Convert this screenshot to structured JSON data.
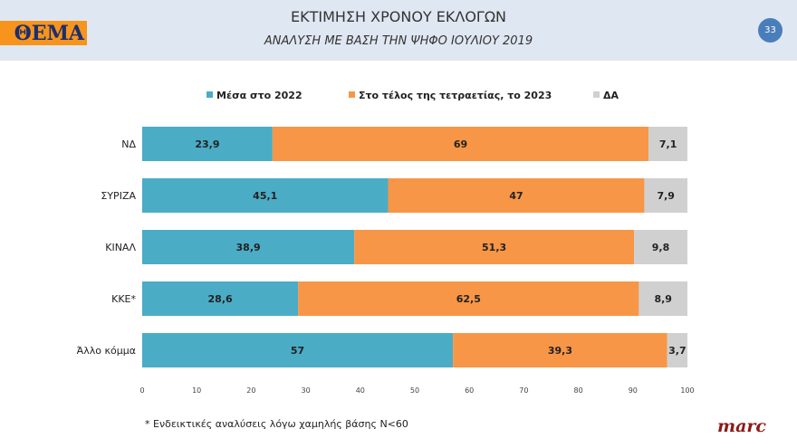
{
  "header": {
    "logo_text": "ΘΕΜΑ",
    "title": "ΕΚΤΙΜΗΣΗ ΧΡΟΝΟΥ ΕΚΛΟΓΩΝ",
    "subtitle": "ΑΝΑΛΥΣΗ ΜΕ ΒΑΣΗ ΤΗΝ ΨΗΦΟ ΙΟΥΛΙΟΥ 2019",
    "page_number": "33"
  },
  "footer": {
    "footnote": "* Ενδεικτικές αναλύσεις λόγω χαμηλής βάσης Ν<60",
    "brand": "marc"
  },
  "chart_data": {
    "type": "bar",
    "orientation": "horizontal",
    "stacked": true,
    "title": "ΕΚΤΙΜΗΣΗ ΧΡΟΝΟΥ ΕΚΛΟΓΩΝ",
    "categories": [
      "ΝΔ",
      "ΣΥΡΙΖΑ",
      "ΚΙΝΑΛ",
      "ΚΚΕ*",
      "Άλλο κόμμα"
    ],
    "series": [
      {
        "name": "Μέσα στο 2022",
        "color": "#4bacc6",
        "values": [
          23.9,
          45.1,
          38.9,
          28.6,
          57
        ],
        "labels": [
          "23,9",
          "45,1",
          "38,9",
          "28,6",
          "57"
        ]
      },
      {
        "name": "Στο τέλος της τετραετίας, το 2023",
        "color": "#f79646",
        "values": [
          69,
          47,
          51.3,
          62.5,
          39.3
        ],
        "labels": [
          "69",
          "47",
          "51,3",
          "62,5",
          "39,3"
        ]
      },
      {
        "name": "ΔΑ",
        "color": "#d0d0d0",
        "values": [
          7.1,
          7.9,
          9.8,
          8.9,
          3.7
        ],
        "labels": [
          "7,1",
          "7,9",
          "9,8",
          "8,9",
          "3,7"
        ]
      }
    ],
    "xlim": [
      0,
      100
    ],
    "xticks": [
      "0",
      "10",
      "20",
      "30",
      "40",
      "50",
      "60",
      "70",
      "80",
      "90",
      "100"
    ],
    "legend": "top",
    "grid": false
  }
}
